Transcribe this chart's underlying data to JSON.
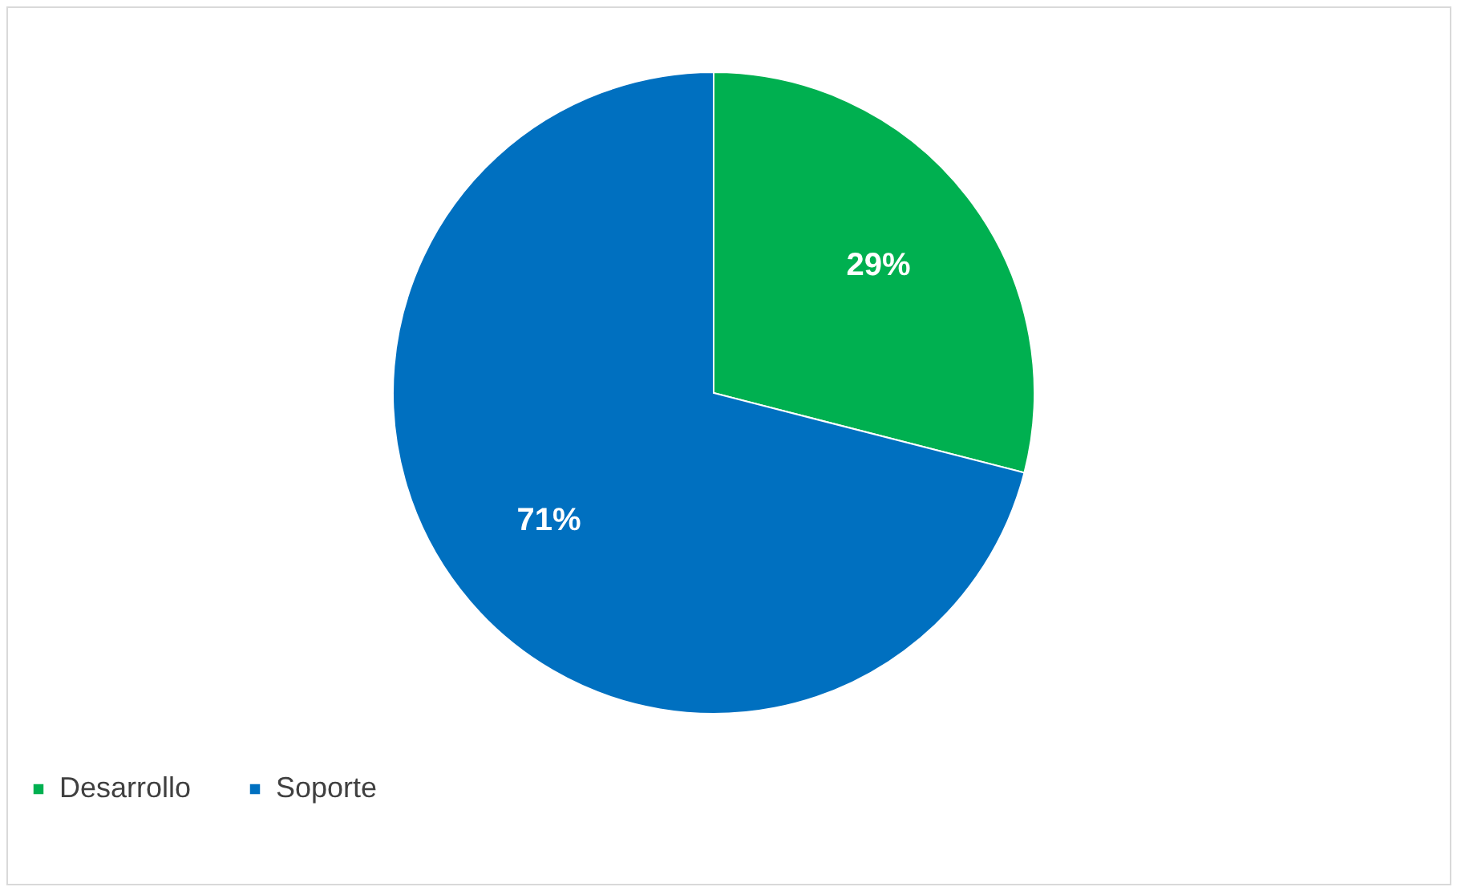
{
  "chart_data": {
    "type": "pie",
    "categories": [
      "Desarrollo",
      "Soporte"
    ],
    "values": [
      29,
      71
    ],
    "colors": [
      "#00b050",
      "#0070c0"
    ],
    "value_labels": [
      "29%",
      "71%"
    ],
    "legend": "bottom"
  }
}
